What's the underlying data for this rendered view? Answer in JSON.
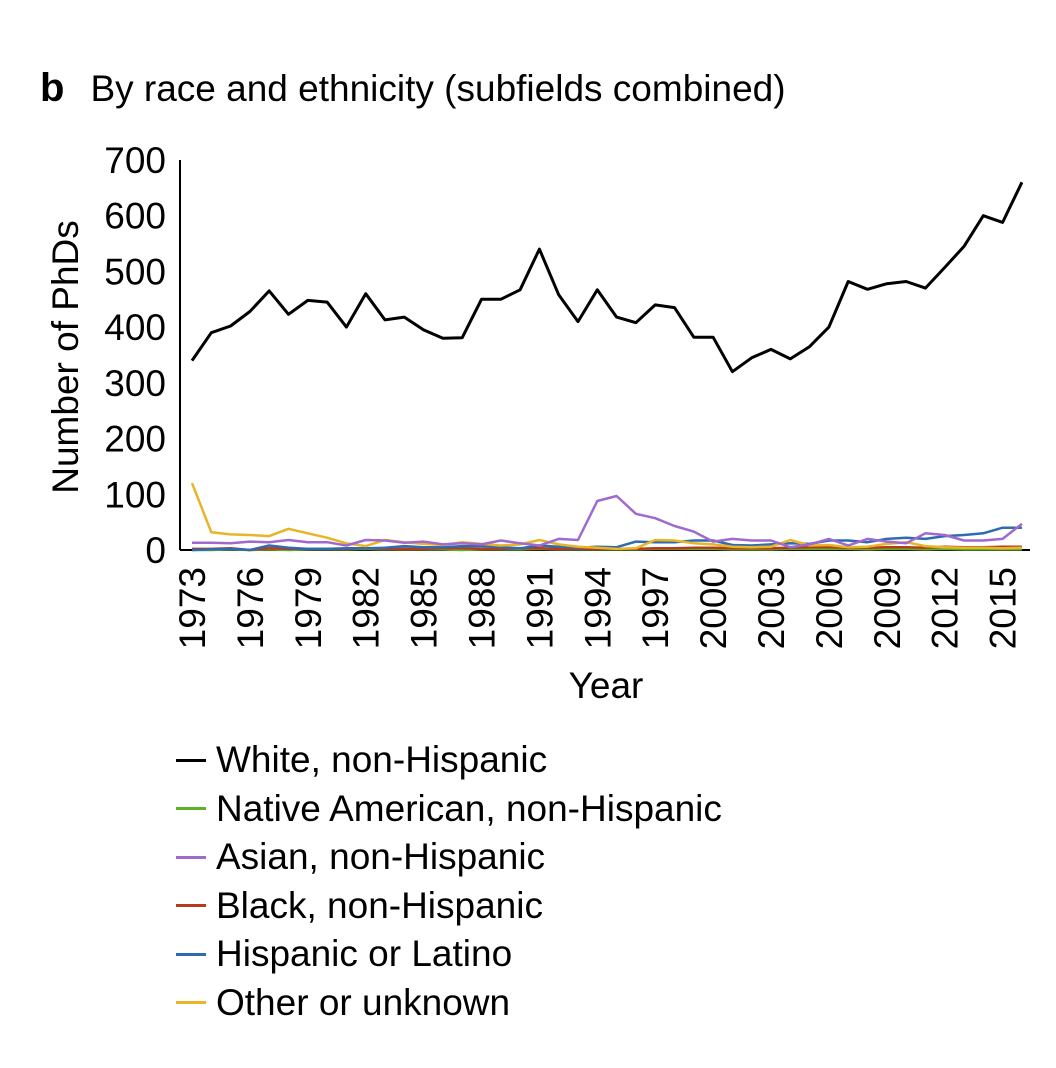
{
  "panel": {
    "letter": "b",
    "title": "By race and ethnicity (subfields combined)"
  },
  "chart_data": {
    "type": "line",
    "title": "By race and ethnicity (subfields combined)",
    "xlabel": "Year",
    "ylabel": "Number of PhDs",
    "xlim": [
      1973,
      2016
    ],
    "ylim": [
      0,
      700
    ],
    "yticks": [
      0,
      100,
      200,
      300,
      400,
      500,
      600,
      700
    ],
    "xticks": [
      1973,
      1976,
      1979,
      1982,
      1985,
      1988,
      1991,
      1994,
      1997,
      2000,
      2003,
      2006,
      2009,
      2012,
      2015
    ],
    "x": [
      1973,
      1974,
      1975,
      1976,
      1977,
      1978,
      1979,
      1980,
      1981,
      1982,
      1983,
      1984,
      1985,
      1986,
      1987,
      1988,
      1989,
      1990,
      1991,
      1992,
      1993,
      1994,
      1995,
      1996,
      1997,
      1998,
      1999,
      2000,
      2001,
      2002,
      2003,
      2004,
      2005,
      2006,
      2007,
      2008,
      2009,
      2010,
      2011,
      2012,
      2013,
      2014,
      2015,
      2016
    ],
    "grid": false,
    "legend_position": "bottom",
    "series": [
      {
        "name": "White, non-Hispanic",
        "color": "#000000",
        "values": [
          340,
          390,
          402,
          428,
          465,
          423,
          448,
          445,
          400,
          460,
          413,
          418,
          395,
          380,
          381,
          450,
          450,
          467,
          540,
          458,
          410,
          467,
          418,
          408,
          440,
          435,
          382,
          382,
          320,
          345,
          360,
          343,
          365,
          400,
          482,
          468,
          478,
          482,
          470,
          507,
          545,
          600,
          588,
          660
        ]
      },
      {
        "name": "Native American, non-Hispanic",
        "color": "#5fb12a",
        "values": [
          0,
          0,
          1,
          0,
          1,
          0,
          1,
          1,
          1,
          2,
          1,
          1,
          1,
          1,
          0,
          1,
          1,
          1,
          2,
          1,
          1,
          1,
          1,
          1,
          2,
          2,
          2,
          2,
          1,
          1,
          1,
          2,
          2,
          2,
          2,
          1,
          2,
          2,
          1,
          2,
          1,
          1,
          1,
          1
        ]
      },
      {
        "name": "Asian, non-Hispanic",
        "color": "#a069d0",
        "values": [
          13,
          13,
          12,
          15,
          14,
          18,
          14,
          14,
          8,
          18,
          17,
          13,
          15,
          10,
          12,
          10,
          17,
          12,
          8,
          20,
          18,
          88,
          97,
          65,
          57,
          43,
          33,
          15,
          20,
          17,
          17,
          5,
          10,
          20,
          8,
          20,
          15,
          12,
          30,
          27,
          17,
          17,
          20,
          47
        ]
      },
      {
        "name": "Black, non-Hispanic",
        "color": "#b83a1c",
        "values": [
          2,
          2,
          3,
          0,
          3,
          2,
          2,
          2,
          2,
          3,
          2,
          2,
          2,
          3,
          3,
          2,
          2,
          3,
          3,
          2,
          2,
          2,
          2,
          2,
          3,
          3,
          4,
          4,
          3,
          3,
          3,
          4,
          5,
          5,
          4,
          4,
          5,
          5,
          4,
          6,
          5,
          5,
          6,
          6
        ]
      },
      {
        "name": "Hispanic or Latino",
        "color": "#2e6bb0",
        "values": [
          0,
          1,
          2,
          0,
          8,
          4,
          2,
          2,
          3,
          3,
          4,
          7,
          5,
          5,
          7,
          7,
          5,
          3,
          8,
          6,
          4,
          6,
          5,
          15,
          14,
          14,
          17,
          17,
          9,
          8,
          10,
          12,
          11,
          17,
          17,
          14,
          20,
          22,
          20,
          25,
          27,
          30,
          40,
          40
        ]
      },
      {
        "name": "Other or unknown",
        "color": "#e8b528",
        "values": [
          120,
          32,
          28,
          27,
          25,
          38,
          30,
          22,
          12,
          7,
          18,
          14,
          11,
          9,
          14,
          11,
          8,
          10,
          18,
          10,
          6,
          4,
          2,
          3,
          18,
          17,
          12,
          10,
          6,
          5,
          6,
          18,
          8,
          9,
          5,
          6,
          11,
          14,
          7,
          5,
          4,
          4,
          3,
          4
        ]
      }
    ]
  }
}
